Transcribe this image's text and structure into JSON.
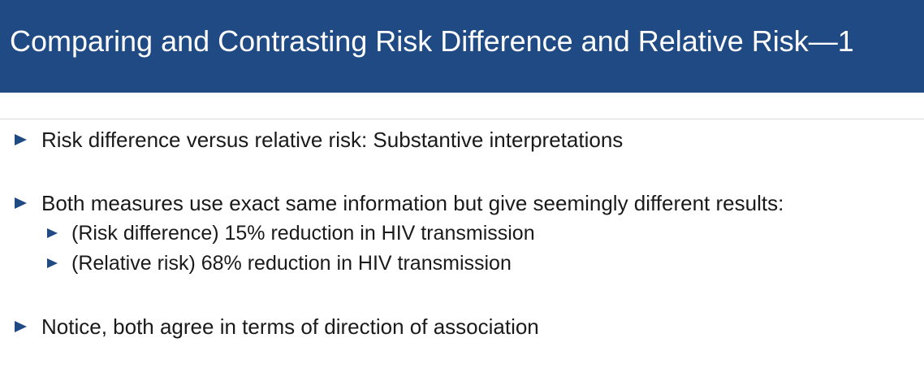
{
  "header": {
    "title": "Comparing and Contrasting Risk Difference and Relative Risk—1",
    "bg_color": "#1f4a84",
    "title_color": "#ffffff"
  },
  "bullets": [
    {
      "icon": "triangle-right-icon",
      "text": "Risk difference versus relative risk: Substantive interpretations"
    },
    {
      "icon": "triangle-right-icon",
      "text": "Both measures use exact same information but give seemingly different results:",
      "sub": [
        {
          "icon": "triangle-right-icon",
          "text": "(Risk difference) 15% reduction in HIV transmission"
        },
        {
          "icon": "triangle-right-icon",
          "text": "(Relative risk) 68% reduction in HIV transmission"
        }
      ]
    },
    {
      "icon": "triangle-right-icon",
      "text": "Notice, both agree in terms of direction of association"
    }
  ]
}
